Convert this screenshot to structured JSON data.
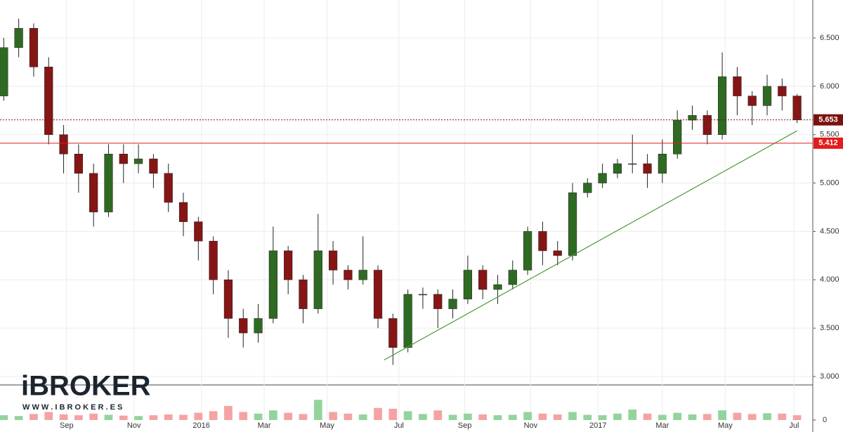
{
  "chart_data": {
    "type": "candlestick",
    "x": [
      0,
      1,
      2,
      3,
      4,
      5,
      6,
      7,
      8,
      9,
      10,
      11,
      12,
      13,
      14,
      15,
      16,
      17,
      18,
      19,
      20,
      21,
      22,
      23,
      24,
      25,
      26,
      27,
      28,
      29,
      30,
      31,
      32,
      33,
      34,
      35,
      36,
      37,
      38,
      39,
      40,
      41,
      42,
      43,
      44,
      45,
      46,
      47,
      48,
      49,
      50,
      51,
      52,
      53
    ],
    "open": [
      5.9,
      6.4,
      6.6,
      6.2,
      5.5,
      5.3,
      5.1,
      4.7,
      5.3,
      5.2,
      5.25,
      5.1,
      4.8,
      4.6,
      4.4,
      4.0,
      3.6,
      3.45,
      3.6,
      4.3,
      4.0,
      3.7,
      4.3,
      4.1,
      4.0,
      4.1,
      3.6,
      3.3,
      3.85,
      3.85,
      3.7,
      3.8,
      4.1,
      3.9,
      3.95,
      4.1,
      4.5,
      4.3,
      4.25,
      4.9,
      5.0,
      5.1,
      5.2,
      5.2,
      5.1,
      5.3,
      5.65,
      5.7,
      5.5,
      6.1,
      5.9,
      5.8,
      6.0,
      5.9
    ],
    "high": [
      6.5,
      6.7,
      6.65,
      6.3,
      5.6,
      5.4,
      5.2,
      5.4,
      5.4,
      5.4,
      5.3,
      5.2,
      4.9,
      4.65,
      4.45,
      4.1,
      3.7,
      3.75,
      4.55,
      4.35,
      4.05,
      4.68,
      4.4,
      4.15,
      4.45,
      4.15,
      3.65,
      3.9,
      3.92,
      3.9,
      3.9,
      4.25,
      4.15,
      4.05,
      4.2,
      4.55,
      4.6,
      4.4,
      5.0,
      5.05,
      5.2,
      5.25,
      5.5,
      5.3,
      5.45,
      5.75,
      5.8,
      5.75,
      6.35,
      6.2,
      5.95,
      6.12,
      6.08,
      5.92
    ],
    "low": [
      5.85,
      6.3,
      6.1,
      5.4,
      5.1,
      4.9,
      4.55,
      4.65,
      5.0,
      5.1,
      4.95,
      4.7,
      4.45,
      4.2,
      3.85,
      3.4,
      3.3,
      3.35,
      3.55,
      3.85,
      3.55,
      3.65,
      3.95,
      3.9,
      3.95,
      3.5,
      3.12,
      3.25,
      3.7,
      3.5,
      3.6,
      3.75,
      3.8,
      3.75,
      3.9,
      4.05,
      4.15,
      4.15,
      4.2,
      4.85,
      4.95,
      5.05,
      5.1,
      4.95,
      5.0,
      5.25,
      5.55,
      5.4,
      5.45,
      5.7,
      5.6,
      5.7,
      5.75,
      5.62
    ],
    "close": [
      6.4,
      6.6,
      6.2,
      5.5,
      5.3,
      5.1,
      4.7,
      5.3,
      5.2,
      5.25,
      5.1,
      4.8,
      4.6,
      4.4,
      4.0,
      3.6,
      3.45,
      3.6,
      4.3,
      4.0,
      3.7,
      4.3,
      4.1,
      4.0,
      4.1,
      3.6,
      3.3,
      3.85,
      3.85,
      3.7,
      3.8,
      4.1,
      3.9,
      3.95,
      4.1,
      4.5,
      4.3,
      4.25,
      4.9,
      5.0,
      5.1,
      5.2,
      5.2,
      5.1,
      5.3,
      5.65,
      5.7,
      5.5,
      6.1,
      5.9,
      5.8,
      6.0,
      5.9,
      5.653
    ],
    "volume": [
      1.2,
      1.0,
      1.5,
      2.0,
      1.4,
      1.2,
      1.6,
      1.3,
      1.1,
      1.0,
      1.2,
      1.4,
      1.3,
      1.8,
      2.2,
      3.5,
      2.0,
      1.6,
      2.4,
      1.8,
      1.5,
      5.0,
      2.0,
      1.6,
      1.4,
      3.0,
      2.8,
      2.2,
      1.5,
      2.4,
      1.3,
      1.6,
      1.4,
      1.2,
      1.3,
      2.0,
      1.6,
      1.4,
      2.0,
      1.3,
      1.2,
      1.6,
      2.6,
      1.6,
      1.3,
      1.8,
      1.4,
      1.5,
      2.4,
      1.8,
      1.5,
      1.7,
      1.6,
      1.2
    ],
    "up_color": "#2f6a22",
    "down_color": "#861515",
    "volume_up_color": "#93d49c",
    "volume_down_color": "#f4a3a3",
    "xlim": [
      -0.25,
      54.05
    ],
    "xticks": [
      {
        "value": 4.2,
        "label": "Sep"
      },
      {
        "value": 8.7,
        "label": "Nov"
      },
      {
        "value": 13.2,
        "label": "2016"
      },
      {
        "value": 17.4,
        "label": "Mar"
      },
      {
        "value": 21.6,
        "label": "May"
      },
      {
        "value": 26.4,
        "label": "Jul"
      },
      {
        "value": 30.8,
        "label": "Sep"
      },
      {
        "value": 35.2,
        "label": "Nov"
      },
      {
        "value": 39.7,
        "label": "2017"
      },
      {
        "value": 44.0,
        "label": "Mar"
      },
      {
        "value": 48.2,
        "label": "May"
      },
      {
        "value": 52.8,
        "label": "Jul"
      }
    ],
    "ylim": [
      2.913,
      6.892
    ],
    "yticks": [
      {
        "value": 3.0,
        "label": "3.000"
      },
      {
        "value": 3.5,
        "label": "3.500"
      },
      {
        "value": 4.0,
        "label": "4.000"
      },
      {
        "value": 4.5,
        "label": "4.500"
      },
      {
        "value": 5.0,
        "label": "5.000"
      },
      {
        "value": 5.5,
        "label": "5.500"
      },
      {
        "value": 6.0,
        "label": "6.000"
      },
      {
        "value": 6.5,
        "label": "6.500"
      }
    ],
    "volume_lim": [
      0,
      8
    ],
    "volume_ticks": [
      0
    ],
    "grid": true,
    "price_lines": [
      {
        "value": 5.653,
        "color": "#7a1010",
        "style": "dotted"
      },
      {
        "value": 5.412,
        "color": "#e31b1b",
        "style": "solid"
      }
    ],
    "trendline": {
      "x": [
        25.4,
        53.0
      ],
      "y": [
        3.17,
        5.54
      ],
      "color": "#4f9a3a"
    },
    "logo": {
      "title": "iBROKER",
      "subtitle": "W W W . I B R O K E R . E S"
    }
  }
}
